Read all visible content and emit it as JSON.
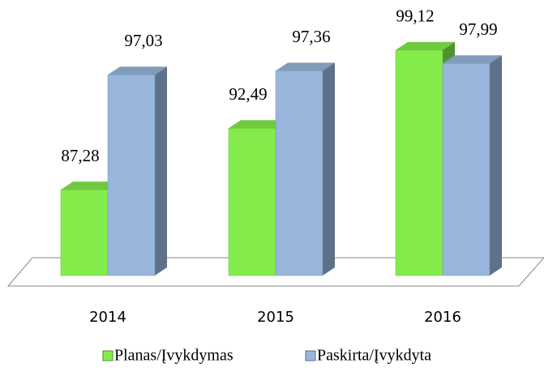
{
  "chart_data": {
    "type": "bar3d",
    "categories": [
      "2014",
      "2015",
      "2016"
    ],
    "series": [
      {
        "name": "Planas/Įvykdymas",
        "color": "#84ec4a",
        "values": [
          87.28,
          92.49,
          99.12
        ],
        "value_labels": [
          "87,28",
          "92,49",
          "99,12"
        ]
      },
      {
        "name": "Paskirta/Įvykdyta",
        "color": "#98b6dc",
        "values": [
          97.03,
          97.36,
          97.99
        ],
        "value_labels": [
          "97,03",
          "97,36",
          "97,99"
        ]
      }
    ],
    "ylim": [
      80,
      100
    ],
    "legend": "bottom"
  }
}
